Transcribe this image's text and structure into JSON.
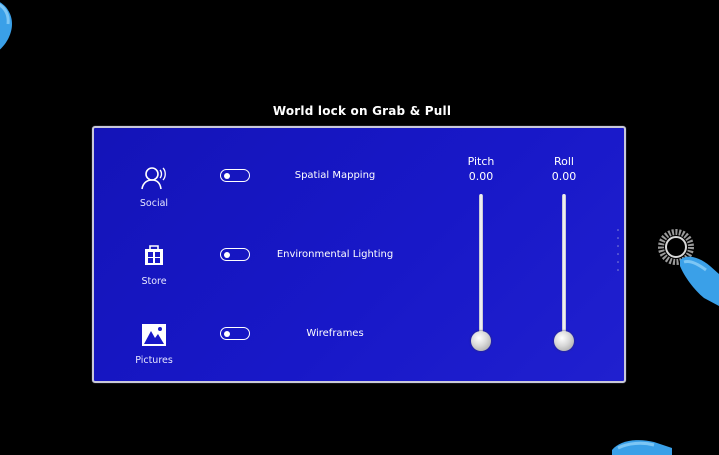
{
  "window": {
    "title": "World lock on Grab & Pull"
  },
  "apps": [
    {
      "label": "Social",
      "icon": "social-icon"
    },
    {
      "label": "Store",
      "icon": "store-icon"
    },
    {
      "label": "Pictures",
      "icon": "pictures-icon"
    }
  ],
  "toggles": [
    {
      "label": "Spatial Mapping",
      "on": false
    },
    {
      "label": "Environmental Lighting",
      "on": false
    },
    {
      "label": "Wireframes",
      "on": false
    }
  ],
  "sliders": [
    {
      "label": "Pitch",
      "value": "0.00",
      "level": 0
    },
    {
      "label": "Roll",
      "value": "0.00",
      "level": 0
    }
  ],
  "colors": {
    "panel": "#1818c8",
    "background": "#000000",
    "hand": "#3aa0e8"
  },
  "decor": {
    "hands": [
      "hand-icon",
      "hand-icon",
      "hand-icon"
    ],
    "grab_ring": "ring-icon"
  }
}
